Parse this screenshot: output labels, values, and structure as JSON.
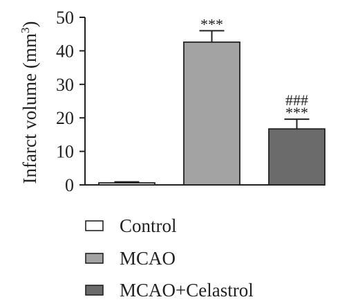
{
  "chart_data": {
    "type": "bar",
    "categories": [
      "Control",
      "MCAO",
      "MCAO+Celastrol"
    ],
    "values": [
      0.6,
      42.6,
      16.7
    ],
    "errors": [
      0.3,
      3.4,
      2.9
    ],
    "colors": [
      "#ffffff",
      "#a3a3a3",
      "#6b6b6b"
    ],
    "ylabel_main": "Infarct volume (mm",
    "ylabel_sup": "3",
    "ylabel_close": ")",
    "ylim": [
      0,
      50
    ],
    "yticks": [
      0,
      10,
      20,
      30,
      40,
      50
    ],
    "ytick_labels": [
      "0",
      "10",
      "20",
      "30",
      "40",
      "50"
    ],
    "annotations": [
      {
        "category": "MCAO",
        "lines": [
          "***"
        ]
      },
      {
        "category": "MCAO+Celastrol",
        "lines": [
          "###",
          "***"
        ]
      }
    ],
    "legend": {
      "placement": "bottom",
      "entries": [
        "Control",
        "MCAO",
        "MCAO+Celastrol"
      ]
    },
    "grid": false
  }
}
